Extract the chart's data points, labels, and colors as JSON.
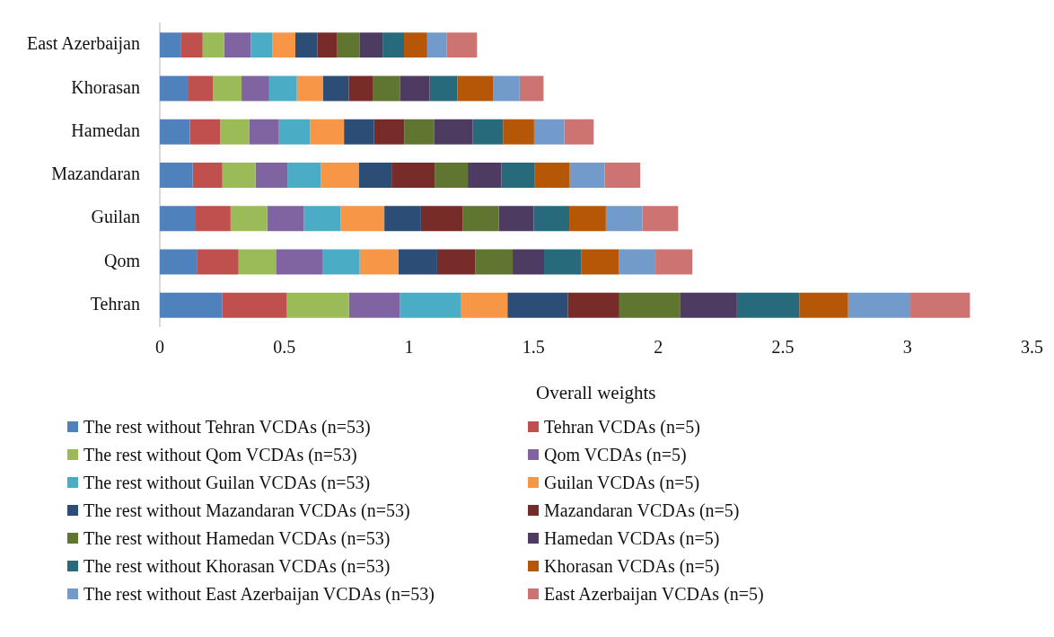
{
  "chart_data": {
    "type": "bar",
    "orientation": "horizontal",
    "stacked": true,
    "xlabel": "Overall weights",
    "legend": "bottom",
    "grid": false,
    "categories": [
      "East Azerbaijan",
      "Khorasan",
      "Hamedan",
      "Mazandaran",
      "Guilan",
      "Qom",
      "Tehran"
    ],
    "xlim": [
      0,
      3.5
    ],
    "xticks": [
      0,
      0.5,
      1,
      1.5,
      2,
      2.5,
      3,
      3.5
    ],
    "series": [
      {
        "name": "The rest without Tehran VCDAs (n=53)",
        "color": "#4f81bd",
        "values": [
          0.086,
          0.112,
          0.121,
          0.132,
          0.144,
          0.151,
          0.251
        ]
      },
      {
        "name": "Tehran VCDAs (n=5)",
        "color": "#c0504d",
        "values": [
          0.086,
          0.102,
          0.121,
          0.119,
          0.14,
          0.165,
          0.259
        ]
      },
      {
        "name": "The rest without Qom VCDAs (n=53)",
        "color": "#9bbb59",
        "values": [
          0.086,
          0.114,
          0.118,
          0.133,
          0.147,
          0.15,
          0.249
        ]
      },
      {
        "name": "Qom VCDAs (n=5)",
        "color": "#8064a2",
        "values": [
          0.107,
          0.111,
          0.118,
          0.128,
          0.147,
          0.186,
          0.204
        ]
      },
      {
        "name": "The rest without Guilan VCDAs (n=53)",
        "color": "#4bacc6",
        "values": [
          0.086,
          0.111,
          0.125,
          0.134,
          0.147,
          0.15,
          0.244
        ]
      },
      {
        "name": "Guilan VCDAs (n=5)",
        "color": "#f79646",
        "values": [
          0.093,
          0.104,
          0.136,
          0.152,
          0.176,
          0.155,
          0.188
        ]
      },
      {
        "name": "The rest without Mazandaran VCDAs (n=53)",
        "color": "#2c4d75",
        "values": [
          0.089,
          0.104,
          0.121,
          0.132,
          0.147,
          0.156,
          0.242
        ]
      },
      {
        "name": "Mazandaran VCDAs (n=5)",
        "color": "#772c2a",
        "values": [
          0.079,
          0.096,
          0.121,
          0.173,
          0.168,
          0.153,
          0.207
        ]
      },
      {
        "name": "The rest without Hamedan VCDAs (n=53)",
        "color": "#5f7530",
        "values": [
          0.089,
          0.111,
          0.121,
          0.133,
          0.144,
          0.15,
          0.243
        ]
      },
      {
        "name": "Hamedan VCDAs (n=5)",
        "color": "#4d3b62",
        "values": [
          0.093,
          0.118,
          0.154,
          0.135,
          0.14,
          0.126,
          0.229
        ]
      },
      {
        "name": "The rest without Khorasan VCDAs (n=53)",
        "color": "#276a7c",
        "values": [
          0.086,
          0.111,
          0.121,
          0.134,
          0.143,
          0.15,
          0.25
        ]
      },
      {
        "name": "Khorasan VCDAs (n=5)",
        "color": "#b65708",
        "values": [
          0.093,
          0.143,
          0.125,
          0.14,
          0.147,
          0.15,
          0.196
        ]
      },
      {
        "name": "The rest without East Azerbaijan VCDAs (n=53)",
        "color": "#729aca",
        "values": [
          0.079,
          0.107,
          0.121,
          0.14,
          0.147,
          0.147,
          0.25
        ]
      },
      {
        "name": "East Azerbaijan VCDAs (n=5)",
        "color": "#cd7371",
        "values": [
          0.121,
          0.096,
          0.118,
          0.143,
          0.143,
          0.148,
          0.239
        ]
      }
    ]
  }
}
